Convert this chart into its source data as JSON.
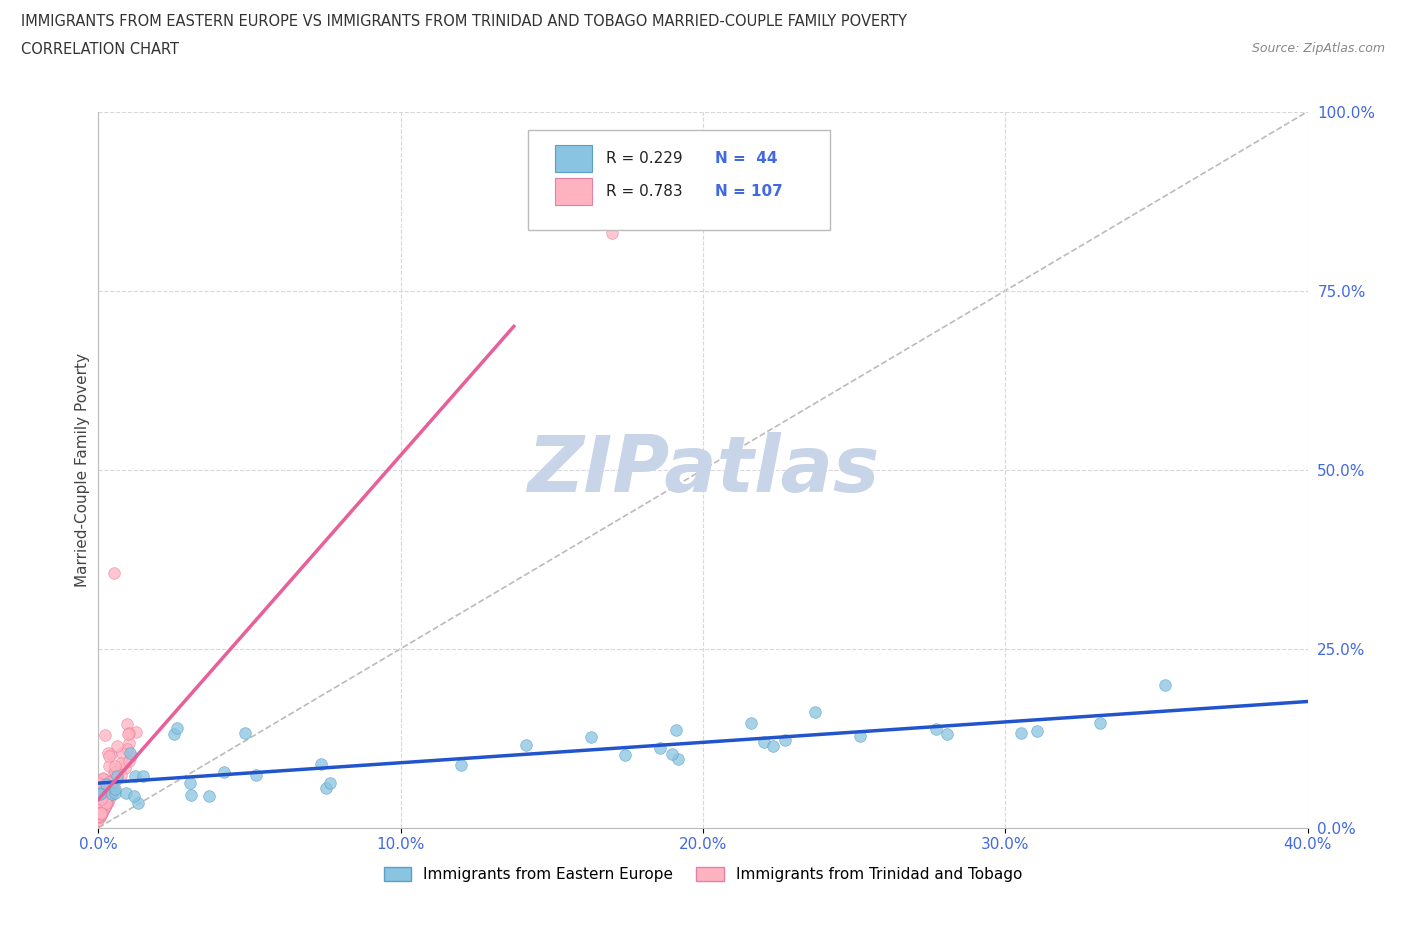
{
  "title_line1": "IMMIGRANTS FROM EASTERN EUROPE VS IMMIGRANTS FROM TRINIDAD AND TOBAGO MARRIED-COUPLE FAMILY POVERTY",
  "title_line2": "CORRELATION CHART",
  "source_text": "Source: ZipAtlas.com",
  "ylabel": "Married-Couple Family Poverty",
  "xlim": [
    0.0,
    0.4
  ],
  "ylim": [
    0.0,
    1.0
  ],
  "xticks": [
    0.0,
    0.1,
    0.2,
    0.3,
    0.4
  ],
  "yticks": [
    0.0,
    0.25,
    0.5,
    0.75,
    1.0
  ],
  "xticklabels": [
    "0.0%",
    "10.0%",
    "20.0%",
    "30.0%",
    "40.0%"
  ],
  "yticklabels": [
    "0.0%",
    "25.0%",
    "50.0%",
    "75.0%",
    "100.0%"
  ],
  "series1_name": "Immigrants from Eastern Europe",
  "series1_color": "#89c4e1",
  "series1_edge_color": "#5a9fc9",
  "series1_R": 0.229,
  "series1_N": 44,
  "series2_name": "Immigrants from Trinidad and Tobago",
  "series2_color": "#ffb3c1",
  "series2_edge_color": "#e87fa0",
  "series2_R": 0.783,
  "series2_N": 107,
  "watermark": "ZIPatlas",
  "watermark_color": "#c8d4e8",
  "grid_color": "#d8d8d8",
  "grid_linestyle": "--",
  "background_color": "#ffffff",
  "title_color": "#333333",
  "tick_color": "#4169e1",
  "trend_line1_color": "#2255cc",
  "trend_line2_color": "#e8609a",
  "diag_line_color": "#bbbbbb",
  "legend_box_color": "#eeeeee"
}
